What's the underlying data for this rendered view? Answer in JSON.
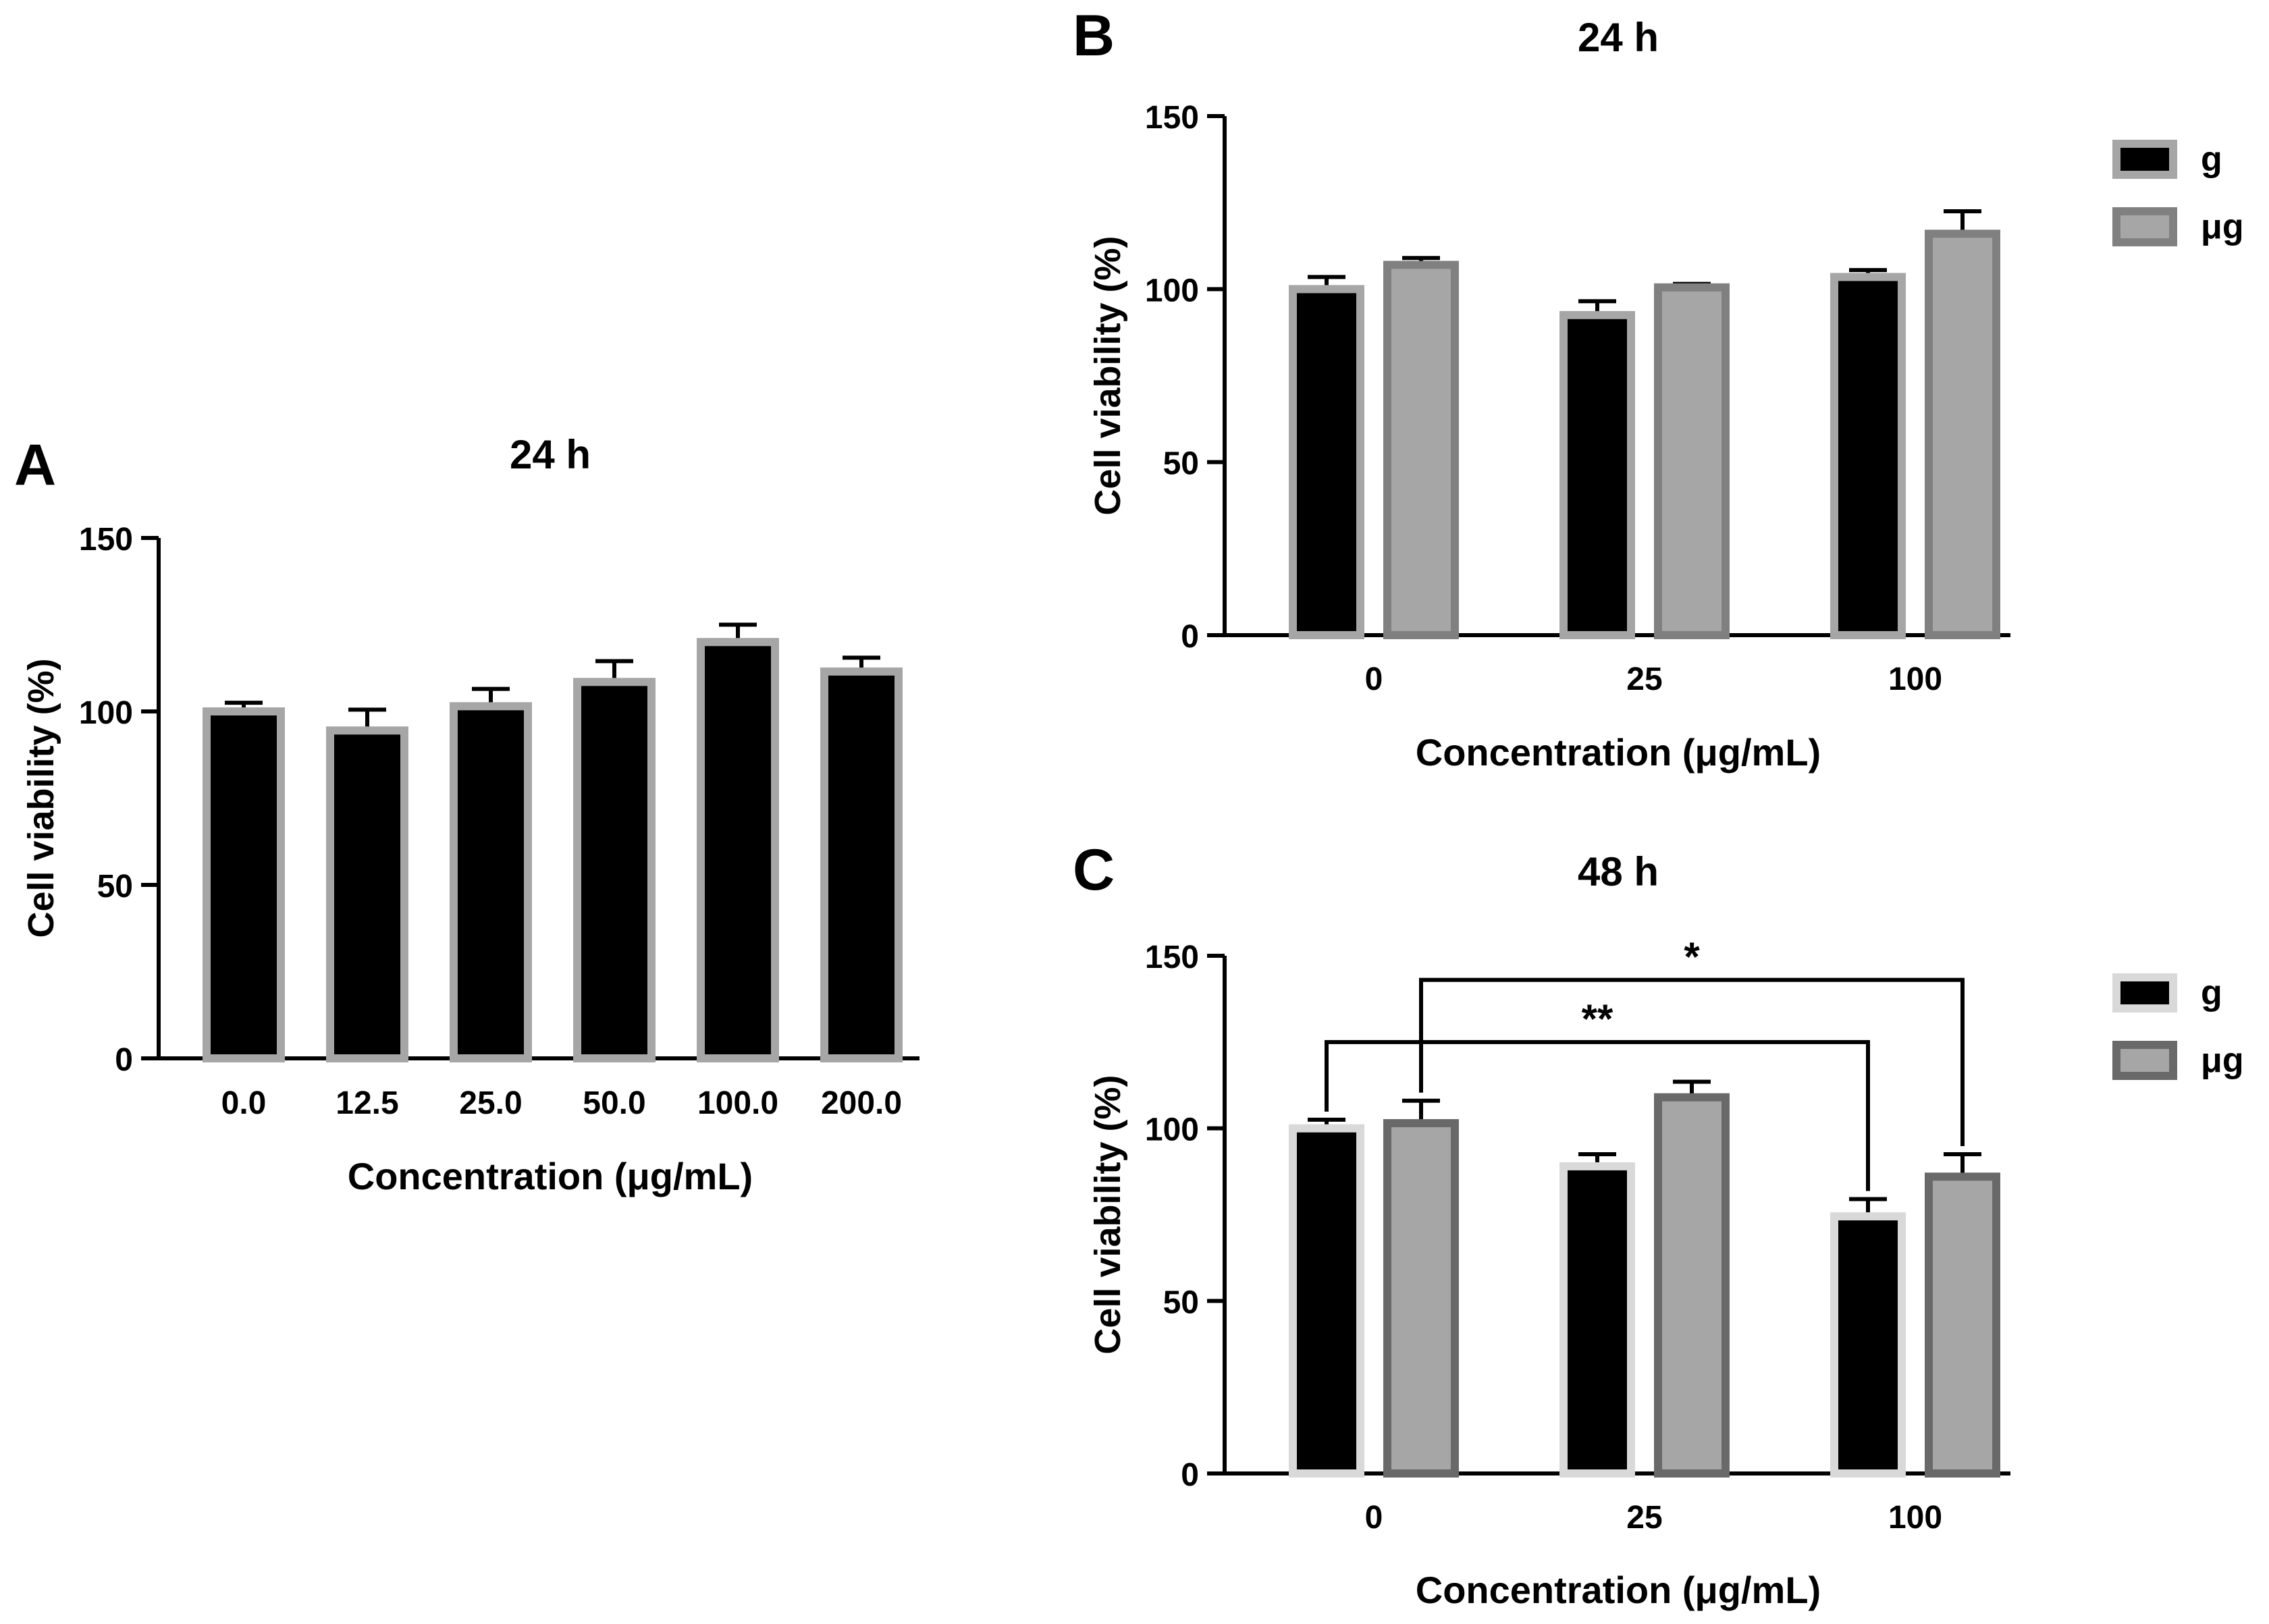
{
  "chart_data": [
    {
      "panel_label": "A",
      "type": "bar",
      "title": "24 h",
      "xlabel": "Concentration (μg/mL)",
      "ylabel": "Cell viability (%)",
      "ylim": [
        0,
        150
      ],
      "yticks": [
        "0",
        "50",
        "100",
        "150"
      ],
      "categories": [
        "0.0",
        "12.5",
        "25.0",
        "50.0",
        "100.0",
        "200.0"
      ],
      "series": [
        {
          "values": [
            100,
            94.5,
            101.5,
            108.5,
            120,
            111.5
          ],
          "errors": [
            2.5,
            6,
            5,
            6,
            5,
            4
          ],
          "fill": "#000000",
          "edge": "#a6a6a6"
        }
      ],
      "grid": false,
      "significance": []
    },
    {
      "panel_label": "B",
      "type": "bar",
      "title": "24 h",
      "xlabel": "Concentration (μg/mL)",
      "ylabel": "Cell viability (%)",
      "ylim": [
        0,
        150
      ],
      "yticks": [
        "0",
        "50",
        "100",
        "150"
      ],
      "categories": [
        "0",
        "25",
        "100"
      ],
      "series": [
        {
          "name": "g",
          "values": [
            100,
            92.5,
            103.5
          ],
          "errors": [
            3.5,
            4,
            2
          ],
          "fill": "#000000",
          "edge": "#a6a6a6"
        },
        {
          "name": "μg",
          "values": [
            107,
            100.5,
            116
          ],
          "errors": [
            2,
            1,
            6.5
          ],
          "fill": "#a6a6a6",
          "edge": "#808080"
        }
      ],
      "legend": "right",
      "grid": false,
      "significance": []
    },
    {
      "panel_label": "C",
      "type": "bar",
      "title": "48 h",
      "xlabel": "Concentration (μg/mL)",
      "ylabel": "Cell viability (%)",
      "ylim": [
        0,
        150
      ],
      "yticks": [
        "0",
        "50",
        "100",
        "150"
      ],
      "categories": [
        "0",
        "25",
        "100"
      ],
      "series": [
        {
          "name": "g",
          "values": [
            100,
            89,
            74.5
          ],
          "errors": [
            2.5,
            3.5,
            5
          ],
          "fill": "#000000",
          "edge": "#d9d9d9"
        },
        {
          "name": "μg",
          "values": [
            101.5,
            109,
            86
          ],
          "errors": [
            6.5,
            4.5,
            6.5
          ],
          "fill": "#a6a6a6",
          "edge": "#696969"
        }
      ],
      "legend": "right",
      "grid": false,
      "significance": [
        {
          "label": "**",
          "from": [
            0,
            0
          ],
          "to": [
            2,
            0
          ],
          "y": 125
        },
        {
          "label": "*",
          "from": [
            0,
            1
          ],
          "to": [
            2,
            1
          ],
          "y": 143
        }
      ]
    }
  ]
}
